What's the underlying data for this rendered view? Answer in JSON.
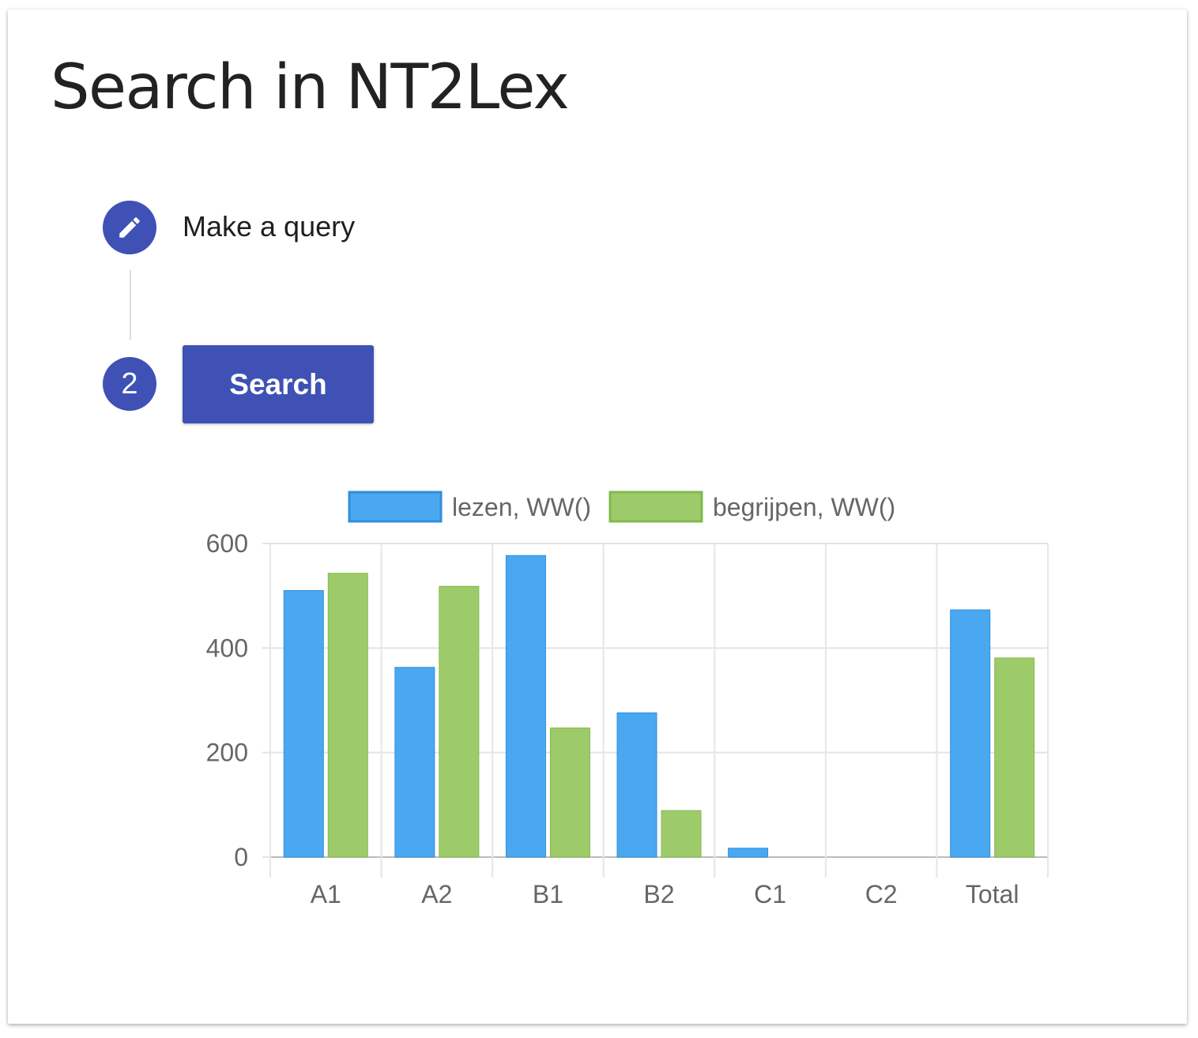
{
  "page": {
    "title": "Search in NT2Lex"
  },
  "stepper": {
    "step1": {
      "icon": "pencil-icon",
      "label": "Make a query"
    },
    "step2": {
      "number": "2",
      "button_label": "Search"
    }
  },
  "colors": {
    "primary": "#3f51b5",
    "series1": "#4aa8f0",
    "series1_border": "#2f8ede",
    "series2": "#9ecb6a",
    "series2_border": "#82b84c"
  },
  "chart_data": {
    "type": "bar",
    "categories": [
      "A1",
      "A2",
      "B1",
      "B2",
      "C1",
      "C2",
      "Total"
    ],
    "series": [
      {
        "name": "lezen, WW()",
        "values": [
          510,
          363,
          577,
          276,
          17,
          0,
          473
        ]
      },
      {
        "name": "begrijpen, WW()",
        "values": [
          543,
          518,
          247,
          89,
          0,
          0,
          381
        ]
      }
    ],
    "ylim": [
      0,
      600
    ],
    "yticks": [
      "0",
      "200",
      "400",
      "600"
    ],
    "grid": true,
    "legend": "top"
  }
}
